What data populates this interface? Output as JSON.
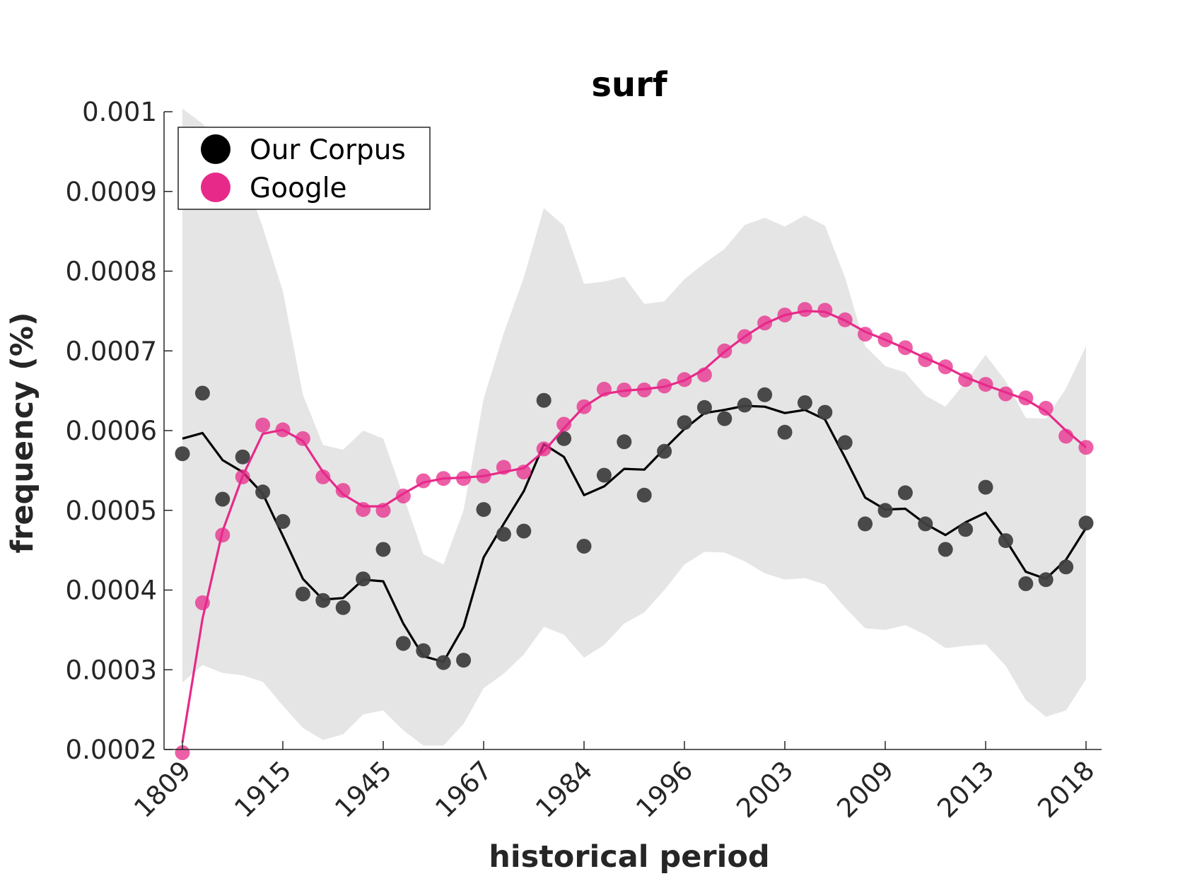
{
  "chart_data": {
    "type": "line",
    "title": "surf",
    "xlabel": "historical period",
    "ylabel": "frequency (%)",
    "ylim": [
      0.0002,
      0.001
    ],
    "grid": false,
    "legend_position": "top-left",
    "x_tick_labels": [
      "1809",
      "1915",
      "1945",
      "1967",
      "1984",
      "1996",
      "2003",
      "2009",
      "2013",
      "2018"
    ],
    "x_tick_indices": [
      0,
      5,
      10,
      15,
      20,
      25,
      30,
      35,
      40,
      45
    ],
    "y_ticks": [
      0.0002,
      0.0003,
      0.0004,
      0.0005,
      0.0006,
      0.0007,
      0.0008,
      0.0009,
      0.001
    ],
    "y_tick_labels": [
      "0.0002",
      "0.0003",
      "0.0004",
      "0.0005",
      "0.0006",
      "0.0007",
      "0.0008",
      "0.0009",
      "0.001"
    ],
    "colors": {
      "corpus": "#000000",
      "corpus_points": "#404040",
      "google": "#e7298a",
      "band": "#e5e5e5"
    },
    "series": [
      {
        "name": "Our Corpus",
        "points": [
          0.000571,
          0.000647,
          0.000514,
          0.000567,
          0.000523,
          0.000486,
          0.000395,
          0.000387,
          0.000378,
          0.000414,
          0.000451,
          0.000333,
          0.000324,
          0.000309,
          0.000312,
          0.000501,
          0.00047,
          0.000474,
          0.000638,
          0.00059,
          0.000455,
          0.000544,
          0.000586,
          0.000519,
          0.000574,
          0.00061,
          0.000629,
          0.000615,
          0.000632,
          0.000645,
          0.000598,
          0.000635,
          0.000623,
          0.000585,
          0.000483,
          0.0005,
          0.000522,
          0.000483,
          0.000451,
          0.000476,
          0.000529,
          0.000462,
          0.000408,
          0.000413,
          0.000429,
          0.000484
        ],
        "smooth": [
          0.00059,
          0.000597,
          0.000563,
          0.000548,
          0.000521,
          0.000468,
          0.000414,
          0.000388,
          0.00039,
          0.000413,
          0.000411,
          0.000358,
          0.000317,
          0.00031,
          0.000354,
          0.000441,
          0.000483,
          0.000524,
          0.000583,
          0.000567,
          0.000519,
          0.00053,
          0.000552,
          0.000551,
          0.000577,
          0.000602,
          0.000622,
          0.000626,
          0.000631,
          0.00063,
          0.000622,
          0.000626,
          0.000614,
          0.000566,
          0.000516,
          0.000501,
          0.000502,
          0.000483,
          0.000469,
          0.000485,
          0.000497,
          0.000463,
          0.000423,
          0.000414,
          0.000438,
          0.000478
        ]
      },
      {
        "name": "Google",
        "points": [
          0.000196,
          0.000384,
          0.000469,
          0.000542,
          0.000607,
          0.000601,
          0.00059,
          0.000542,
          0.000525,
          0.000501,
          0.0005,
          0.000518,
          0.000537,
          0.00054,
          0.00054,
          0.000543,
          0.000554,
          0.000548,
          0.000577,
          0.000608,
          0.00063,
          0.000652,
          0.000651,
          0.000651,
          0.000656,
          0.000664,
          0.00067,
          0.0007,
          0.000718,
          0.000735,
          0.000745,
          0.000752,
          0.000751,
          0.000739,
          0.000721,
          0.000714,
          0.000704,
          0.000689,
          0.00068,
          0.000664,
          0.000658,
          0.000646,
          0.000641,
          0.000628,
          0.000593,
          0.000579
        ],
        "smooth": [
          0.000209,
          0.000364,
          0.000474,
          0.000543,
          0.000596,
          0.000601,
          0.000587,
          0.000548,
          0.00052,
          0.000505,
          0.000505,
          0.000521,
          0.000535,
          0.00054,
          0.000541,
          0.000543,
          0.000548,
          0.000553,
          0.000574,
          0.000603,
          0.00063,
          0.000646,
          0.00065,
          0.000652,
          0.000655,
          0.000663,
          0.000677,
          0.000699,
          0.000718,
          0.000734,
          0.000745,
          0.00075,
          0.000749,
          0.000738,
          0.000724,
          0.000714,
          0.000703,
          0.000691,
          0.00068,
          0.000667,
          0.000657,
          0.000648,
          0.000639,
          0.000624,
          0.0006,
          0.000579
        ]
      }
    ],
    "band": {
      "upper": [
        0.001004,
        0.000985,
        0.00096,
        0.000925,
        0.000855,
        0.000775,
        0.000645,
        0.000582,
        0.000576,
        0.0006,
        0.00059,
        0.000518,
        0.000445,
        0.000432,
        0.0005,
        0.00064,
        0.000722,
        0.000792,
        0.000879,
        0.000857,
        0.000784,
        0.000787,
        0.000793,
        0.000759,
        0.000762,
        0.00079,
        0.00081,
        0.000828,
        0.000858,
        0.000867,
        0.000856,
        0.00087,
        0.000857,
        0.000792,
        0.000706,
        0.000681,
        0.000673,
        0.000644,
        0.00063,
        0.000661,
        0.000695,
        0.000662,
        0.000616,
        0.000615,
        0.000653,
        0.000706
      ],
      "lower": [
        0.000284,
        0.000306,
        0.000296,
        0.000293,
        0.000285,
        0.000255,
        0.000227,
        0.000212,
        0.000219,
        0.000244,
        0.000249,
        0.000224,
        0.000205,
        0.000205,
        0.000232,
        0.000277,
        0.000295,
        0.000319,
        0.000354,
        0.000344,
        0.000315,
        0.000331,
        0.000358,
        0.000372,
        0.0004,
        0.000432,
        0.000448,
        0.000447,
        0.000436,
        0.000421,
        0.000413,
        0.000415,
        0.000407,
        0.000378,
        0.000352,
        0.00035,
        0.000356,
        0.000344,
        0.000327,
        0.00033,
        0.000332,
        0.000305,
        0.000262,
        0.000241,
        0.000249,
        0.000288
      ]
    }
  }
}
